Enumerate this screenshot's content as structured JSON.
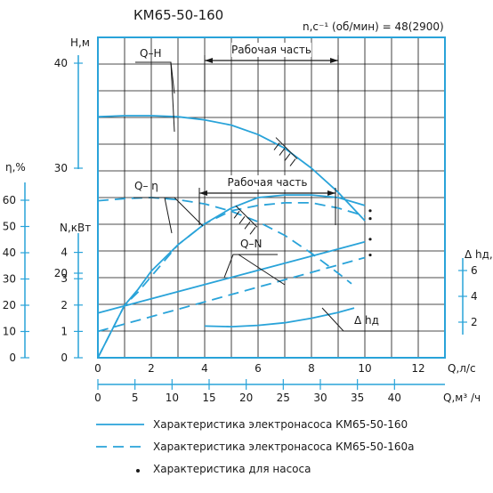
{
  "title": "КМ65-50-160",
  "speed_label": "n,c⁻¹ (об/мин) = 48(2900)",
  "colors": {
    "curve": "#29a3d9",
    "grid": "#111111",
    "axis": "#29a3d9",
    "text": "#1a1a1a"
  },
  "legend": [
    {
      "style": "solid",
      "label": "Характеристика электронасоса КМ65-50-160"
    },
    {
      "style": "dashed",
      "label": "Характеристика электронасоса КМ65-50-160а"
    },
    {
      "style": "dot",
      "label": "Характеристика для насоса"
    }
  ],
  "annotations": {
    "working_part_top": "Рабочая часть",
    "working_part_eff": "Рабочая часть",
    "q_h": "Q–H",
    "q_eta": "Q– η",
    "q_n": "Q–N",
    "npsh": "Δ hд"
  },
  "chart_data": {
    "type": "line",
    "title": "КМ65-50-160",
    "x_axes": {
      "flow_ls": {
        "label": "Q,л/с",
        "ticks": [
          0,
          2,
          4,
          6,
          8,
          10,
          12
        ],
        "range": [
          0,
          14
        ]
      },
      "flow_m3h": {
        "label": "Q,м³ /ч",
        "ticks": [
          0,
          5,
          10,
          15,
          20,
          25,
          30,
          35,
          40
        ]
      }
    },
    "y_axes": {
      "head": {
        "label": "Н,м",
        "ticks": [
          20,
          30,
          40
        ],
        "range": [
          18,
          44
        ]
      },
      "efficiency": {
        "label": "η,%",
        "ticks": [
          0,
          10,
          20,
          30,
          40,
          50,
          60
        ]
      },
      "power": {
        "label": "N,кВт",
        "ticks": [
          0,
          1,
          2,
          3,
          4
        ]
      },
      "npsh": {
        "label": "Δ hд,м",
        "ticks": [
          2,
          4,
          6
        ]
      }
    },
    "grid": true,
    "series": [
      {
        "name": "Q–H",
        "style": "solid",
        "x": [
          0,
          1,
          2,
          3,
          4,
          5,
          6,
          7,
          8,
          9,
          10
        ],
        "y": [
          34.9,
          35.0,
          35.0,
          34.9,
          34.6,
          34.1,
          33.2,
          31.9,
          30.0,
          27.7,
          25.0
        ]
      },
      {
        "name": "Q–H",
        "style": "dashed",
        "x": [
          0,
          1,
          2,
          3,
          4,
          5,
          6,
          7,
          8,
          9,
          9.5
        ],
        "y": [
          26.9,
          27.1,
          27.2,
          27.0,
          26.6,
          25.9,
          24.9,
          23.6,
          21.9,
          20.0,
          19.0
        ]
      },
      {
        "name": "Q– η",
        "style": "solid",
        "x": [
          0,
          0.5,
          1,
          1.5,
          2,
          3,
          4,
          5,
          6,
          7,
          8,
          9,
          10
        ],
        "y": [
          0,
          10,
          20,
          26,
          33,
          43,
          51,
          57,
          61,
          62,
          62,
          61,
          58
        ]
      },
      {
        "name": "Q– η",
        "style": "dashed",
        "x": [
          0,
          0.5,
          1,
          1.5,
          2,
          3,
          4,
          5,
          6,
          7,
          8,
          9,
          10
        ],
        "y": [
          0,
          10,
          20,
          25,
          31,
          43,
          51,
          56,
          58,
          59,
          59,
          57,
          54
        ]
      },
      {
        "name": "Q–N",
        "style": "solid",
        "x": [
          0,
          10
        ],
        "y": [
          1.7,
          4.4
        ]
      },
      {
        "name": "Q–N",
        "style": "dashed",
        "x": [
          0,
          10
        ],
        "y": [
          1.0,
          3.8
        ]
      },
      {
        "name": "Δ hд",
        "style": "solid",
        "x": [
          4,
          5,
          6,
          7,
          8,
          9,
          9.6
        ],
        "y": [
          1.7,
          1.65,
          1.75,
          1.95,
          2.3,
          2.75,
          3.1
        ]
      }
    ],
    "working_range": {
      "head": [
        4,
        9
      ],
      "efficiency": [
        3.8,
        8.9
      ]
    }
  }
}
